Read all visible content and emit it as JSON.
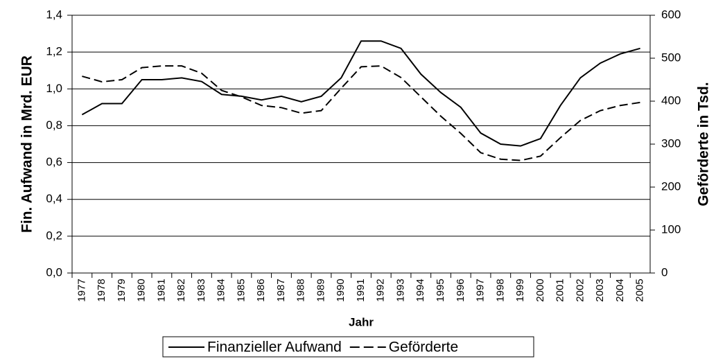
{
  "chart_data": {
    "type": "line",
    "x_label": "Jahr",
    "y_label": "Fin. Aufwand in Mrd. EUR",
    "y2_label": "Geförderte in Tsd.",
    "categories": [
      "1977",
      "1978",
      "1979",
      "1980",
      "1981",
      "1982",
      "1983",
      "1984",
      "1985",
      "1986",
      "1987",
      "1988",
      "1989",
      "1990",
      "1991",
      "1992",
      "1993",
      "1994",
      "1995",
      "1996",
      "1997",
      "1998",
      "1999",
      "2000",
      "2001",
      "2002",
      "2003",
      "2004",
      "2005"
    ],
    "series": [
      {
        "name": "Finanzieller Aufwand",
        "color": "#000000",
        "dash": "solid",
        "values": [
          0.86,
          0.92,
          0.92,
          1.05,
          1.05,
          1.06,
          1.04,
          0.97,
          0.96,
          0.94,
          0.96,
          0.93,
          0.96,
          1.06,
          1.26,
          1.26,
          1.22,
          1.08,
          0.98,
          0.9,
          0.76,
          0.7,
          0.69,
          0.73,
          0.91,
          1.06,
          1.14,
          1.19,
          1.22
        ]
      },
      {
        "name": "Geförderte",
        "color": "#000000",
        "dash": "dashed",
        "axis": "y2",
        "values": [
          458,
          445,
          450,
          478,
          482,
          482,
          465,
          425,
          410,
          390,
          385,
          372,
          378,
          430,
          480,
          482,
          455,
          410,
          365,
          325,
          280,
          265,
          262,
          272,
          315,
          355,
          378,
          390,
          397
        ]
      }
    ],
    "ylim": [
      0,
      1.4
    ],
    "yticks": [
      {
        "value": 0,
        "label": "0,0"
      },
      {
        "value": 0.2,
        "label": "0,2"
      },
      {
        "value": 0.4,
        "label": "0,4"
      },
      {
        "value": 0.6,
        "label": "0,6"
      },
      {
        "value": 0.8,
        "label": "0,8"
      },
      {
        "value": 1.0,
        "label": "1,0"
      },
      {
        "value": 1.2,
        "label": "1,2"
      },
      {
        "value": 1.4,
        "label": "1,4"
      }
    ],
    "y2lim": [
      0,
      600
    ],
    "y2ticks": [
      0,
      100,
      200,
      300,
      400,
      500,
      600
    ],
    "grid": true,
    "legend": "bottom"
  }
}
